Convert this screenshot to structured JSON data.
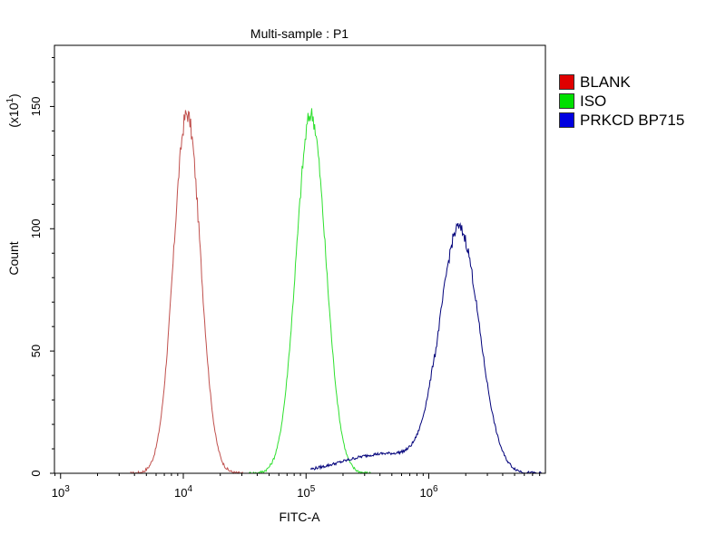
{
  "chart_data": {
    "type": "area",
    "title": "Multi-sample : P1",
    "xlabel": "FITC-A",
    "ylabel": "Count",
    "ylabel_scale": "(x10",
    "ylabel_scale_exp": "1",
    "ylabel_scale_close": ")",
    "x_scale": "log",
    "xlim_log10": [
      2.95,
      6.95
    ],
    "ylim": [
      0,
      175
    ],
    "x_ticks": [
      {
        "base": "10",
        "exp": "3",
        "log10": 3
      },
      {
        "base": "10",
        "exp": "4",
        "log10": 4
      },
      {
        "base": "10",
        "exp": "5",
        "log10": 5
      },
      {
        "base": "10",
        "exp": "6",
        "log10": 6
      }
    ],
    "y_ticks": [
      {
        "label": "0",
        "value": 0
      },
      {
        "label": "50",
        "value": 50
      },
      {
        "label": "100",
        "value": 100
      },
      {
        "label": "150",
        "value": 150
      }
    ],
    "legend_position": "right",
    "series": [
      {
        "name": "BLANK",
        "color": "#c0504d",
        "swatch": "#e00000",
        "peak_log10": 4.03,
        "peak_count": 147,
        "width_log10": 0.11
      },
      {
        "name": "ISO",
        "color": "#2ee02e",
        "swatch": "#00e000",
        "peak_log10": 5.04,
        "peak_count": 147,
        "width_log10": 0.12
      },
      {
        "name": "PRKCD BP715",
        "color": "#00007a",
        "swatch": "#0000e0",
        "peak_log10": 6.25,
        "peak_count": 100,
        "width_log10": 0.16,
        "tail_log10": 5.65
      }
    ]
  }
}
